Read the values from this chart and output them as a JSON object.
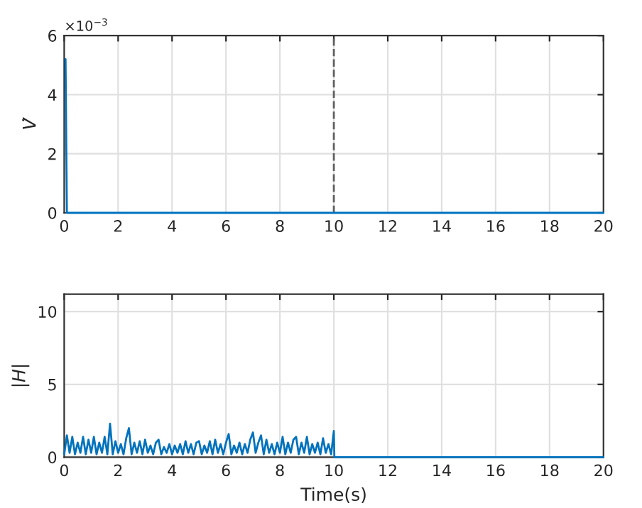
{
  "chart_data": [
    {
      "type": "line",
      "ylabel": "V̇",
      "annotations": [
        "×10$^{−3}$"
      ],
      "series": [
        {
          "color": "#0072bd",
          "x": [
            0.05,
            0.1,
            20
          ],
          "values": [
            5.2,
            0,
            0
          ]
        }
      ],
      "xlim": [
        0,
        20
      ],
      "xticks": [
        0,
        2,
        4,
        6,
        8,
        10,
        12,
        14,
        16,
        18,
        20
      ],
      "ylim": [
        0,
        6
      ],
      "yticks": [
        0,
        2,
        4,
        6
      ],
      "ref_lines": [
        {
          "axis": "x",
          "value": 10,
          "color": "#606060",
          "line_style": "dashed"
        }
      ],
      "grid": true
    },
    {
      "type": "line",
      "ylabel": "|H|",
      "xlabel": "Time(s)",
      "series": [
        {
          "color": "#0072bd",
          "x": [
            0,
            0.1,
            0.2,
            0.3,
            0.4,
            0.5,
            0.6,
            0.7,
            0.8,
            0.9,
            1.0,
            1.1,
            1.2,
            1.3,
            1.4,
            1.5,
            1.6,
            1.7,
            1.8,
            1.9,
            2.0,
            2.1,
            2.2,
            2.3,
            2.4,
            2.5,
            2.6,
            2.7,
            2.8,
            2.9,
            3.0,
            3.1,
            3.2,
            3.3,
            3.4,
            3.5,
            3.6,
            3.7,
            3.8,
            3.9,
            4.0,
            4.1,
            4.2,
            4.3,
            4.4,
            4.5,
            4.6,
            4.7,
            4.8,
            4.9,
            5.0,
            5.1,
            5.2,
            5.3,
            5.4,
            5.5,
            5.6,
            5.7,
            5.8,
            5.9,
            6.0,
            6.1,
            6.2,
            6.3,
            6.4,
            6.5,
            6.6,
            6.7,
            6.8,
            6.9,
            7.0,
            7.1,
            7.2,
            7.3,
            7.4,
            7.5,
            7.6,
            7.7,
            7.8,
            7.9,
            8.0,
            8.1,
            8.2,
            8.3,
            8.4,
            8.5,
            8.6,
            8.7,
            8.8,
            8.9,
            9.0,
            9.1,
            9.2,
            9.3,
            9.4,
            9.5,
            9.6,
            9.7,
            9.8,
            9.9,
            10.0,
            10.02,
            20
          ],
          "values": [
            0.2,
            1.5,
            0.3,
            1.4,
            0.2,
            1.0,
            0.3,
            1.4,
            0.2,
            1.2,
            0.3,
            1.4,
            0.2,
            1.0,
            0.3,
            1.4,
            0.2,
            2.3,
            0.2,
            1.1,
            0.3,
            0.9,
            0.2,
            1.3,
            2.0,
            0.2,
            1.0,
            0.3,
            1.1,
            0.2,
            1.2,
            0.3,
            0.8,
            0.2,
            1.0,
            1.2,
            0.2,
            0.7,
            0.3,
            0.9,
            0.2,
            0.8,
            0.3,
            0.9,
            0.2,
            1.1,
            0.3,
            0.9,
            0.2,
            1.0,
            1.1,
            0.2,
            0.8,
            0.3,
            1.1,
            0.2,
            1.2,
            0.3,
            0.9,
            0.2,
            1.0,
            1.6,
            0.2,
            0.8,
            0.3,
            1.0,
            0.2,
            0.9,
            0.3,
            1.2,
            1.7,
            0.3,
            1.0,
            1.5,
            0.2,
            1.2,
            0.3,
            0.9,
            0.2,
            1.0,
            0.3,
            1.4,
            0.2,
            1.0,
            0.3,
            1.2,
            1.4,
            0.2,
            1.0,
            0.3,
            1.4,
            0.2,
            0.9,
            0.3,
            1.0,
            0.2,
            1.3,
            0.3,
            0.9,
            0.2,
            1.8,
            0,
            0
          ]
        }
      ],
      "xlim": [
        0,
        20
      ],
      "xticks": [
        0,
        2,
        4,
        6,
        8,
        10,
        12,
        14,
        16,
        18,
        20
      ],
      "ylim": [
        0,
        11.2
      ],
      "yticks": [
        0,
        5,
        10
      ],
      "grid": true
    }
  ]
}
